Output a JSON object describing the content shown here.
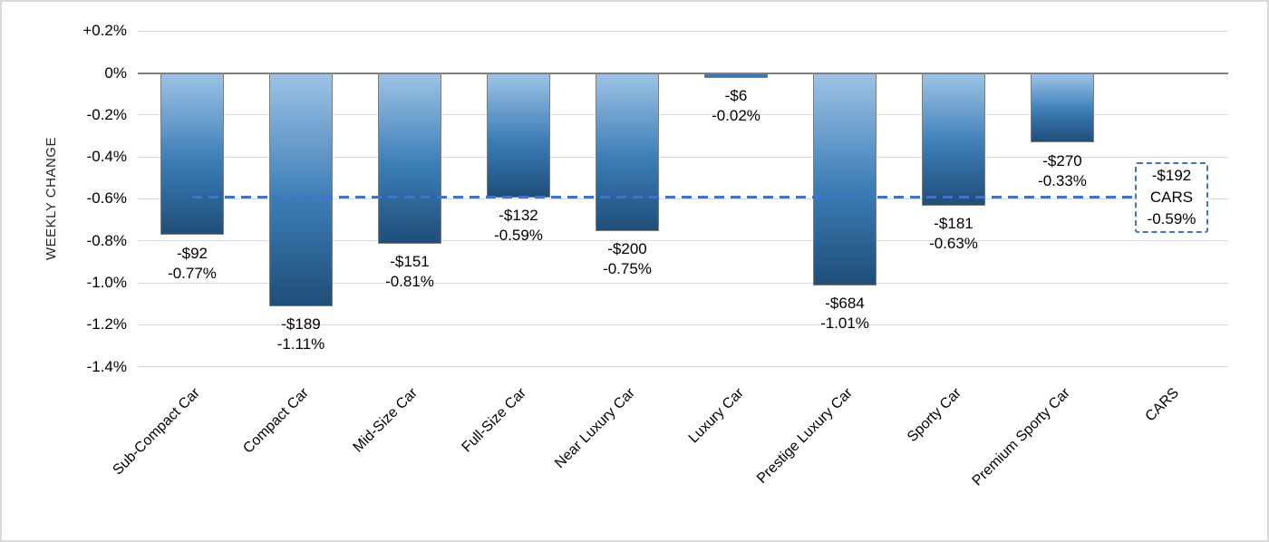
{
  "chart_data": {
    "type": "bar",
    "title": "",
    "ylabel": "WEEKLY CHANGE",
    "xlabel": "",
    "ylim": [
      -1.4,
      0.2
    ],
    "grid": true,
    "y_ticks": [
      {
        "label": "+0.2%",
        "value": 0.2
      },
      {
        "label": "0%",
        "value": 0.0
      },
      {
        "label": "-0.2%",
        "value": -0.2
      },
      {
        "label": "-0.4%",
        "value": -0.4
      },
      {
        "label": "-0.6%",
        "value": -0.6
      },
      {
        "label": "-0.8%",
        "value": -0.8
      },
      {
        "label": "-1.0%",
        "value": -1.0
      },
      {
        "label": "-1.2%",
        "value": -1.2
      },
      {
        "label": "-1.4%",
        "value": -1.4
      }
    ],
    "categories": [
      "Sub-Compact Car",
      "Compact Car",
      "Mid-Size Car",
      "Full-Size Car",
      "Near Luxury Car",
      "Luxury Car",
      "Prestige Luxury Car",
      "Sporty Car",
      "Premium Sporty Car",
      "CARS"
    ],
    "bars": [
      {
        "category": "Sub-Compact Car",
        "dollar": -92,
        "pct": -0.77,
        "dollar_label": "-$92",
        "pct_label": "-0.77%"
      },
      {
        "category": "Compact Car",
        "dollar": -189,
        "pct": -1.11,
        "dollar_label": "-$189",
        "pct_label": "-1.11%"
      },
      {
        "category": "Mid-Size Car",
        "dollar": -151,
        "pct": -0.81,
        "dollar_label": "-$151",
        "pct_label": "-0.81%"
      },
      {
        "category": "Full-Size Car",
        "dollar": -132,
        "pct": -0.59,
        "dollar_label": "-$132",
        "pct_label": "-0.59%"
      },
      {
        "category": "Near Luxury Car",
        "dollar": -200,
        "pct": -0.75,
        "dollar_label": "-$200",
        "pct_label": "-0.75%"
      },
      {
        "category": "Luxury Car",
        "dollar": -6,
        "pct": -0.02,
        "dollar_label": "-$6",
        "pct_label": "-0.02%"
      },
      {
        "category": "Prestige Luxury Car",
        "dollar": -684,
        "pct": -1.01,
        "dollar_label": "-$684",
        "pct_label": "-1.01%"
      },
      {
        "category": "Sporty Car",
        "dollar": -181,
        "pct": -0.63,
        "dollar_label": "-$181",
        "pct_label": "-0.63%"
      },
      {
        "category": "Premium Sporty Car",
        "dollar": -270,
        "pct": -0.33,
        "dollar_label": "-$270",
        "pct_label": "-0.33%"
      }
    ],
    "overall": {
      "category": "CARS",
      "dollar": -192,
      "pct": -0.59,
      "dollar_label": "-$192",
      "name_label": "CARS",
      "pct_label": "-0.59%"
    },
    "reference_line": {
      "value": -0.59,
      "style": "dashed",
      "color": "#4472C4"
    },
    "legend": null,
    "colors": {
      "bar_gradient_top": "#9DC3E6",
      "bar_gradient_mid": "#3B7CB5",
      "bar_gradient_bottom": "#1F4E79",
      "bar_border": "#7F7F7F",
      "gridline": "#D9D9D9",
      "zero_line": "#808080",
      "reference_line": "#4472C4",
      "text": "#000000",
      "frame_border": "#D9D9D9"
    }
  }
}
